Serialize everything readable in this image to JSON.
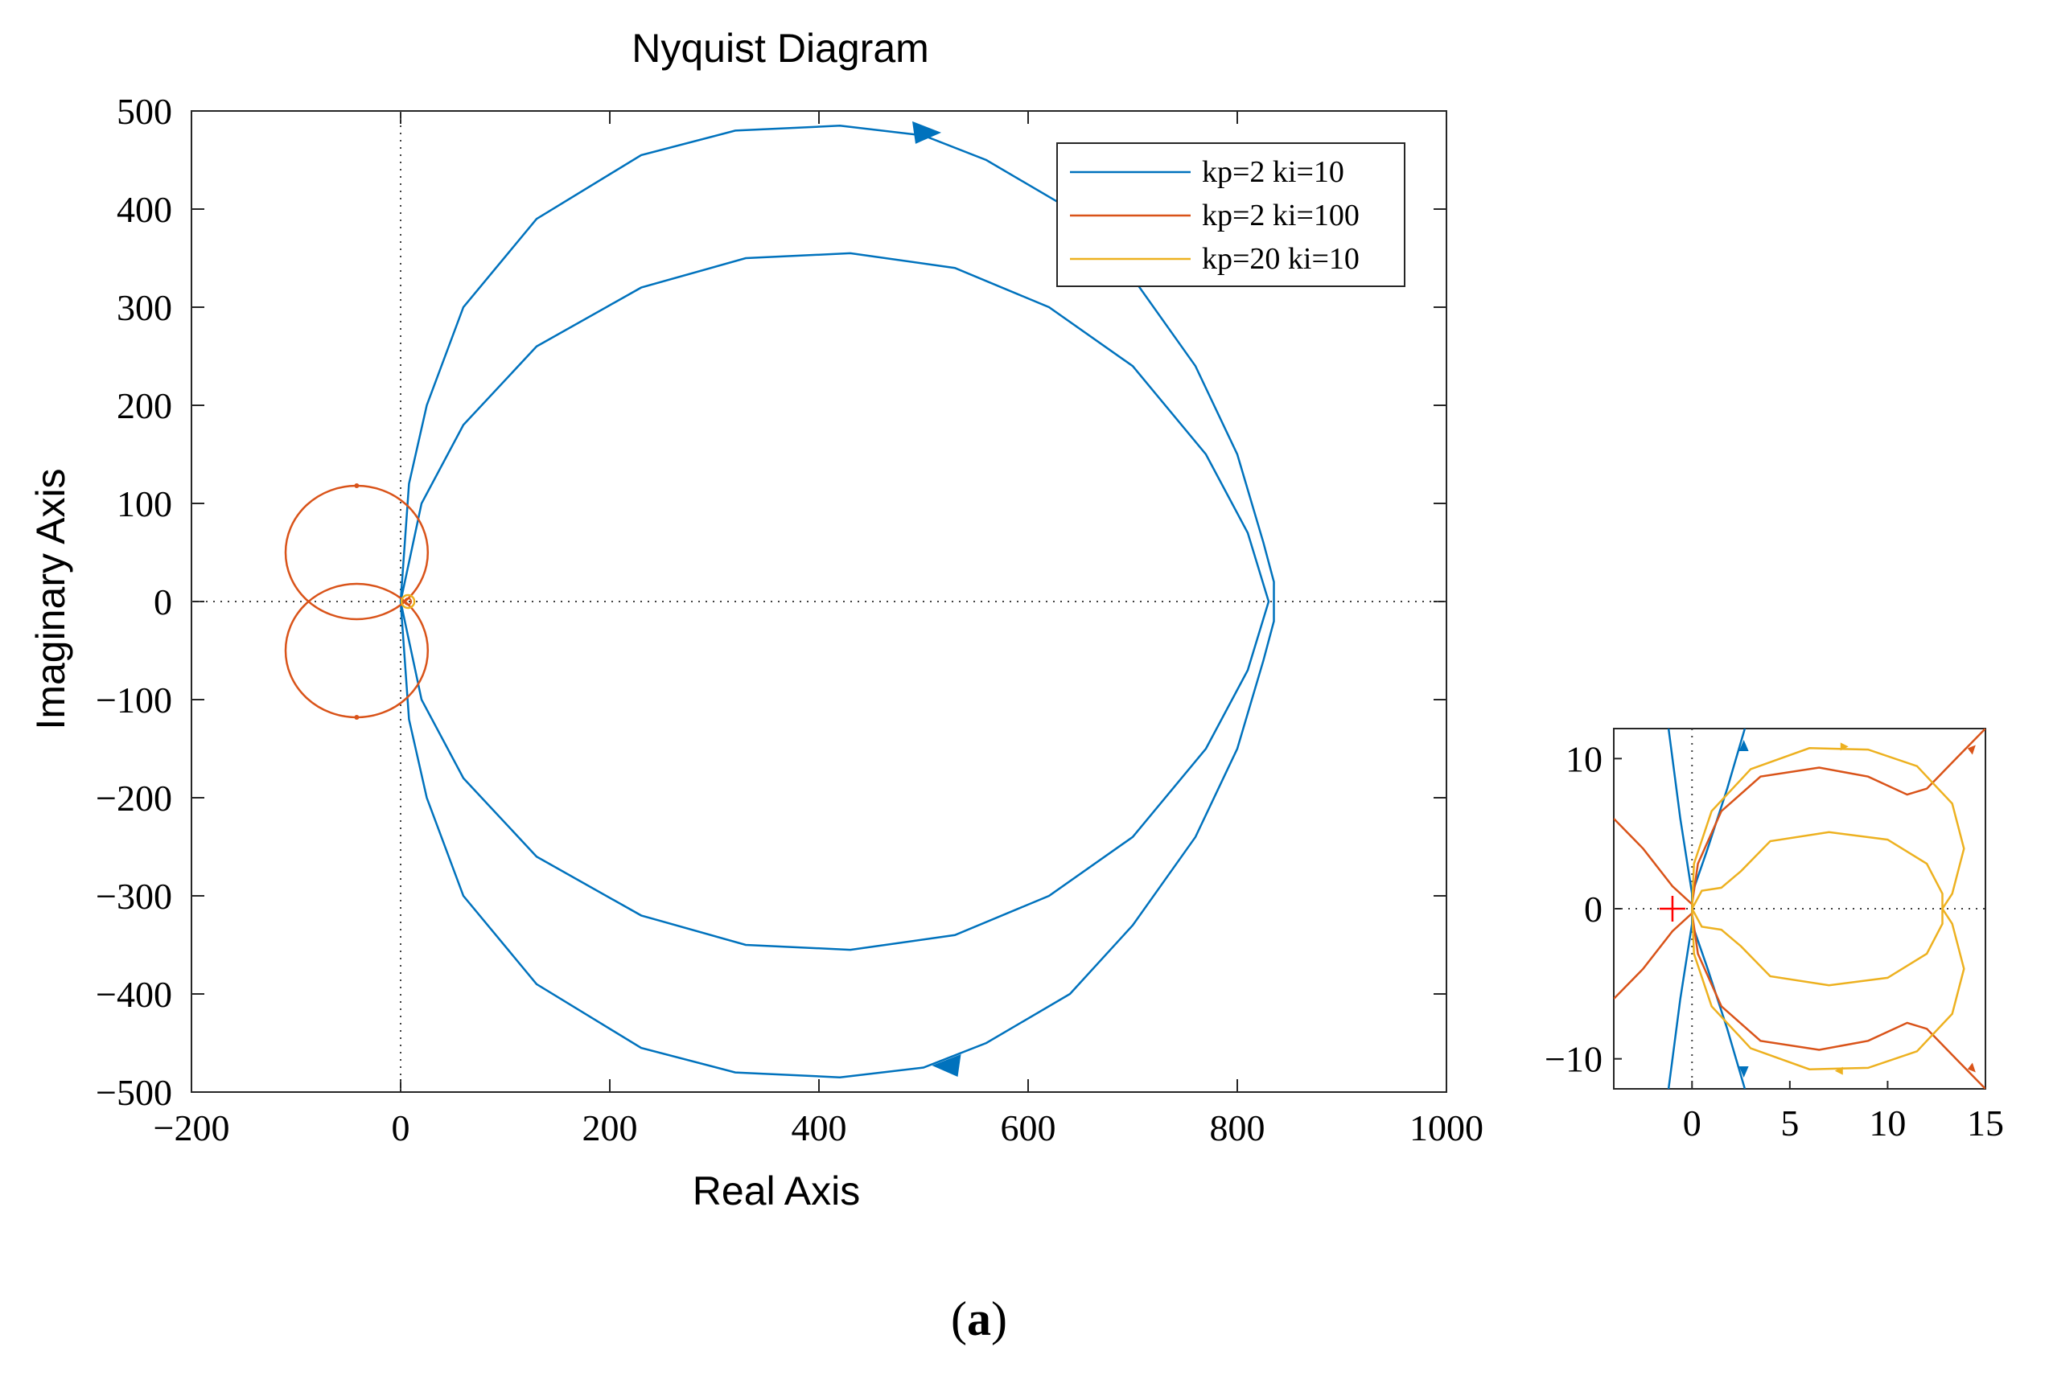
{
  "caption": {
    "open": "(",
    "letter": "a",
    "close": ")"
  },
  "chart_data": [
    {
      "type": "line",
      "title": "Nyquist Diagram",
      "xlabel": "Real Axis",
      "ylabel": "Imaginary Axis",
      "xlim": [
        -200,
        1000
      ],
      "ylim": [
        -500,
        500
      ],
      "xticks": [
        -200,
        0,
        200,
        400,
        600,
        800,
        1000
      ],
      "yticks": [
        -500,
        -400,
        -300,
        -200,
        -100,
        0,
        100,
        200,
        300,
        400,
        500
      ],
      "xtick_labels": [
        "−200",
        "0",
        "200",
        "400",
        "600",
        "800",
        "1000"
      ],
      "ytick_labels": [
        "−500",
        "−400",
        "−300",
        "−200",
        "−100",
        "0",
        "100",
        "200",
        "300",
        "400",
        "500"
      ],
      "grid": false,
      "zero_lines": "dotted",
      "legend_position": "top-right",
      "colors": {
        "blue": "#0072BD",
        "red": "#D95319",
        "yellow": "#EDB120"
      },
      "series": [
        {
          "name": "kp=2 ki=10",
          "color": "#0072BD",
          "description_shape": "outer loop and inner loop, symmetric about real axis",
          "outer_loop": {
            "x": [
              0,
              8,
              25,
              60,
              130,
              230,
              320,
              420,
              500,
              560,
              640,
              700,
              760,
              800,
              825,
              835,
              835
            ],
            "y": [
              0,
              120,
              200,
              300,
              390,
              455,
              480,
              485,
              475,
              450,
              400,
              330,
              240,
              150,
              60,
              20,
              0
            ]
          },
          "inner_loop": {
            "x": [
              0,
              20,
              60,
              130,
              230,
              330,
              430,
              530,
              620,
              700,
              770,
              810,
              830
            ],
            "y": [
              0,
              100,
              180,
              260,
              320,
              350,
              355,
              340,
              300,
              240,
              150,
              70,
              0
            ]
          },
          "arrows": [
            {
              "x": 500,
              "y": 478,
              "dir": "right"
            },
            {
              "x": 525,
              "y": -473,
              "dir": "left"
            }
          ]
        },
        {
          "name": "kp=2 ki=100",
          "color": "#D95319",
          "description_shape": "two small circles near origin",
          "upper_circle": {
            "cx": -42,
            "cy": 50,
            "r": 68
          },
          "lower_circle": {
            "cx": -42,
            "cy": -50,
            "r": 68
          }
        },
        {
          "name": "kp=20 ki=10",
          "color": "#EDB120",
          "description_shape": "very small loop near origin",
          "center": {
            "x": 7,
            "y": 0
          }
        }
      ]
    },
    {
      "type": "line",
      "title": "",
      "xlim": [
        -4,
        15
      ],
      "ylim": [
        -12,
        12
      ],
      "xticks": [
        0,
        5,
        10,
        15
      ],
      "yticks": [
        -10,
        0,
        10
      ],
      "xtick_labels": [
        "0",
        "5",
        "10",
        "15"
      ],
      "ytick_labels": [
        "−10",
        "0",
        "10"
      ],
      "critical_point": {
        "x": -1,
        "y": 0,
        "marker": "+"
      },
      "description": "zoomed view near origin"
    }
  ]
}
